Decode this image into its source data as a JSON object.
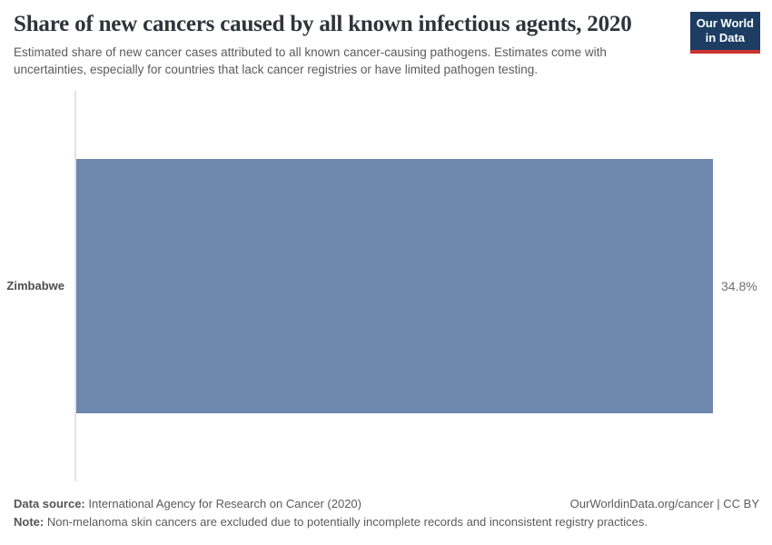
{
  "header": {
    "title": "Share of new cancers caused by all known infectious agents, 2020",
    "subtitle": "Estimated share of new cancer cases attributed to all known cancer-causing pathogens. Estimates come with uncertainties, especially for countries that lack cancer registries or have limited pathogen testing.",
    "logo": {
      "line1": "Our World",
      "line2": "in Data"
    }
  },
  "chart_data": {
    "type": "bar",
    "orientation": "horizontal",
    "title": "Share of new cancers caused by all known infectious agents, 2020",
    "categories": [
      "Zimbabwe"
    ],
    "values": [
      34.8
    ],
    "value_labels": [
      "34.8%"
    ],
    "xlabel": "",
    "ylabel": "",
    "xlim": [
      0,
      34.8
    ],
    "grid": false,
    "legend": "none",
    "bar_color": "#6e87ad"
  },
  "footer": {
    "datasource_label": "Data source:",
    "datasource_text": " International Agency for Research on Cancer (2020)",
    "rights": "OurWorldinData.org/cancer | CC BY",
    "note_label": "Note:",
    "note_text": " Non-melanoma skin cancers are excluded due to potentially incomplete records and inconsistent registry practices."
  },
  "colors": {
    "bar": "#6e87ad",
    "logo_background": "#1d3d63",
    "logo_stripe": "#cb3431",
    "axis_line": "#e2e2e2"
  }
}
